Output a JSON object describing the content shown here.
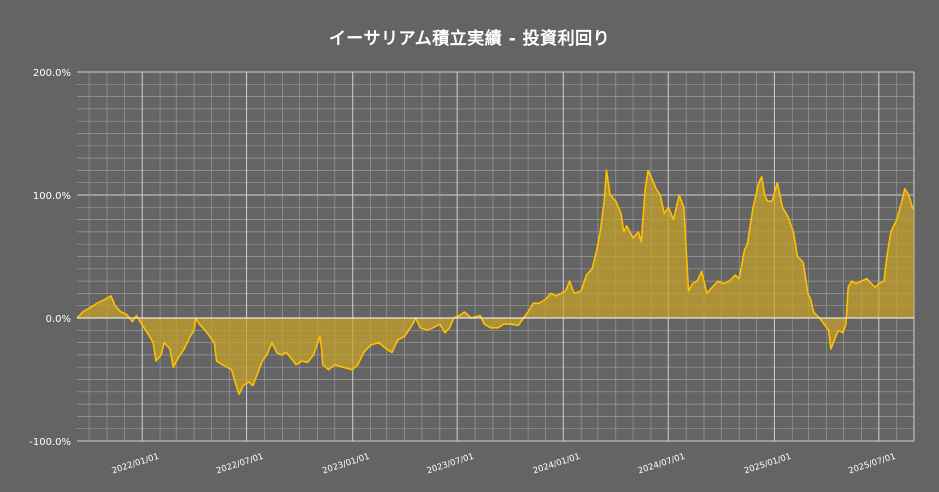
{
  "chart_data": {
    "type": "area",
    "title": "イーサリアム積立実績 - 投資利回り",
    "xlabel": "",
    "ylabel": "",
    "ylim": [
      -100,
      200
    ],
    "y_ticks": [
      -100,
      0,
      100,
      200
    ],
    "y_tick_labels": [
      "-100.0%",
      "0.0%",
      "100.0%",
      "200.0%"
    ],
    "x_range": [
      "2021-09-10",
      "2025-08-31"
    ],
    "x_tick_labels": [
      "2022/01/01",
      "2022/07/01",
      "2023/01/01",
      "2023/07/01",
      "2024/01/01",
      "2024/07/01",
      "2025/01/01",
      "2025/07/01"
    ],
    "x_tick_dates": [
      "2022-01-01",
      "2022-07-01",
      "2023-01-01",
      "2023-07-01",
      "2024-01-01",
      "2024-07-01",
      "2025-01-01",
      "2025-07-01"
    ],
    "grid": true,
    "legend": "none",
    "colors": {
      "background": "#646464",
      "grid": "#9a9a9a",
      "grid_major": "#d0d0d0",
      "line": "#ffc000",
      "fill": "#c9a227",
      "zero_line": "#ffffff"
    },
    "series": [
      {
        "values_unit": "%",
        "points": [
          [
            "2021-09-10",
            0
          ],
          [
            "2021-09-20",
            5
          ],
          [
            "2021-10-01",
            8
          ],
          [
            "2021-10-15",
            12
          ],
          [
            "2021-10-28",
            15
          ],
          [
            "2021-11-08",
            18
          ],
          [
            "2021-11-15",
            10
          ],
          [
            "2021-11-25",
            5
          ],
          [
            "2021-12-05",
            3
          ],
          [
            "2021-12-15",
            -3
          ],
          [
            "2021-12-22",
            2
          ],
          [
            "2021-12-31",
            -5
          ],
          [
            "2022-01-10",
            -12
          ],
          [
            "2022-01-20",
            -20
          ],
          [
            "2022-01-25",
            -35
          ],
          [
            "2022-02-03",
            -30
          ],
          [
            "2022-02-08",
            -20
          ],
          [
            "2022-02-18",
            -25
          ],
          [
            "2022-02-24",
            -40
          ],
          [
            "2022-03-05",
            -32
          ],
          [
            "2022-03-15",
            -25
          ],
          [
            "2022-03-25",
            -15
          ],
          [
            "2022-04-01",
            -10
          ],
          [
            "2022-04-04",
            0
          ],
          [
            "2022-04-10",
            -5
          ],
          [
            "2022-04-20",
            -10
          ],
          [
            "2022-04-28",
            -15
          ],
          [
            "2022-05-06",
            -20
          ],
          [
            "2022-05-10",
            -35
          ],
          [
            "2022-05-20",
            -38
          ],
          [
            "2022-05-28",
            -40
          ],
          [
            "2022-06-05",
            -42
          ],
          [
            "2022-06-13",
            -55
          ],
          [
            "2022-06-18",
            -62
          ],
          [
            "2022-06-25",
            -55
          ],
          [
            "2022-07-05",
            -52
          ],
          [
            "2022-07-12",
            -55
          ],
          [
            "2022-07-20",
            -45
          ],
          [
            "2022-07-28",
            -35
          ],
          [
            "2022-08-05",
            -30
          ],
          [
            "2022-08-14",
            -20
          ],
          [
            "2022-08-22",
            -28
          ],
          [
            "2022-08-30",
            -30
          ],
          [
            "2022-09-08",
            -28
          ],
          [
            "2022-09-15",
            -32
          ],
          [
            "2022-09-25",
            -38
          ],
          [
            "2022-10-05",
            -35
          ],
          [
            "2022-10-15",
            -36
          ],
          [
            "2022-10-25",
            -30
          ],
          [
            "2022-11-05",
            -15
          ],
          [
            "2022-11-08",
            -25
          ],
          [
            "2022-11-10",
            -38
          ],
          [
            "2022-11-20",
            -42
          ],
          [
            "2022-12-01",
            -38
          ],
          [
            "2022-12-15",
            -40
          ],
          [
            "2022-12-31",
            -42
          ],
          [
            "2023-01-10",
            -38
          ],
          [
            "2023-01-20",
            -28
          ],
          [
            "2023-02-01",
            -22
          ],
          [
            "2023-02-15",
            -20
          ],
          [
            "2023-02-28",
            -25
          ],
          [
            "2023-03-10",
            -28
          ],
          [
            "2023-03-20",
            -18
          ],
          [
            "2023-04-01",
            -15
          ],
          [
            "2023-04-15",
            -5
          ],
          [
            "2023-04-20",
            0
          ],
          [
            "2023-04-28",
            -8
          ],
          [
            "2023-05-10",
            -10
          ],
          [
            "2023-05-20",
            -8
          ],
          [
            "2023-06-01",
            -5
          ],
          [
            "2023-06-10",
            -12
          ],
          [
            "2023-06-18",
            -8
          ],
          [
            "2023-06-25",
            0
          ],
          [
            "2023-07-05",
            2
          ],
          [
            "2023-07-14",
            5
          ],
          [
            "2023-07-25",
            0
          ],
          [
            "2023-08-10",
            2
          ],
          [
            "2023-08-17",
            -5
          ],
          [
            "2023-08-28",
            -8
          ],
          [
            "2023-09-10",
            -8
          ],
          [
            "2023-09-20",
            -5
          ],
          [
            "2023-10-01",
            -5
          ],
          [
            "2023-10-15",
            -6
          ],
          [
            "2023-10-24",
            0
          ],
          [
            "2023-11-01",
            5
          ],
          [
            "2023-11-10",
            12
          ],
          [
            "2023-11-20",
            12
          ],
          [
            "2023-12-01",
            15
          ],
          [
            "2023-12-10",
            20
          ],
          [
            "2023-12-20",
            18
          ],
          [
            "2023-12-28",
            20
          ],
          [
            "2024-01-05",
            22
          ],
          [
            "2024-01-12",
            30
          ],
          [
            "2024-01-20",
            20
          ],
          [
            "2024-02-01",
            22
          ],
          [
            "2024-02-10",
            35
          ],
          [
            "2024-02-20",
            40
          ],
          [
            "2024-02-28",
            55
          ],
          [
            "2024-03-05",
            70
          ],
          [
            "2024-03-12",
            95
          ],
          [
            "2024-03-16",
            120
          ],
          [
            "2024-03-22",
            100
          ],
          [
            "2024-04-01",
            95
          ],
          [
            "2024-04-10",
            85
          ],
          [
            "2024-04-15",
            70
          ],
          [
            "2024-04-20",
            75
          ],
          [
            "2024-05-01",
            65
          ],
          [
            "2024-05-10",
            70
          ],
          [
            "2024-05-15",
            62
          ],
          [
            "2024-05-22",
            105
          ],
          [
            "2024-05-27",
            120
          ],
          [
            "2024-06-01",
            115
          ],
          [
            "2024-06-10",
            105
          ],
          [
            "2024-06-17",
            100
          ],
          [
            "2024-06-24",
            85
          ],
          [
            "2024-07-01",
            90
          ],
          [
            "2024-07-10",
            80
          ],
          [
            "2024-07-20",
            100
          ],
          [
            "2024-07-28",
            90
          ],
          [
            "2024-08-05",
            22
          ],
          [
            "2024-08-12",
            28
          ],
          [
            "2024-08-20",
            30
          ],
          [
            "2024-08-28",
            38
          ],
          [
            "2024-09-06",
            20
          ],
          [
            "2024-09-15",
            25
          ],
          [
            "2024-09-25",
            30
          ],
          [
            "2024-10-05",
            28
          ],
          [
            "2024-10-15",
            30
          ],
          [
            "2024-10-25",
            35
          ],
          [
            "2024-11-01",
            32
          ],
          [
            "2024-11-10",
            55
          ],
          [
            "2024-11-15",
            60
          ],
          [
            "2024-11-25",
            90
          ],
          [
            "2024-12-05",
            110
          ],
          [
            "2024-12-10",
            115
          ],
          [
            "2024-12-15",
            100
          ],
          [
            "2024-12-20",
            95
          ],
          [
            "2024-12-28",
            95
          ],
          [
            "2025-01-06",
            110
          ],
          [
            "2025-01-15",
            90
          ],
          [
            "2025-01-25",
            82
          ],
          [
            "2025-02-03",
            70
          ],
          [
            "2025-02-10",
            50
          ],
          [
            "2025-02-20",
            45
          ],
          [
            "2025-02-28",
            20
          ],
          [
            "2025-03-05",
            15
          ],
          [
            "2025-03-10",
            5
          ],
          [
            "2025-03-20",
            0
          ],
          [
            "2025-03-28",
            -5
          ],
          [
            "2025-04-05",
            -10
          ],
          [
            "2025-04-09",
            -25
          ],
          [
            "2025-04-15",
            -18
          ],
          [
            "2025-04-22",
            -10
          ],
          [
            "2025-04-30",
            -12
          ],
          [
            "2025-05-05",
            -5
          ],
          [
            "2025-05-09",
            25
          ],
          [
            "2025-05-15",
            30
          ],
          [
            "2025-05-22",
            28
          ],
          [
            "2025-06-01",
            30
          ],
          [
            "2025-06-10",
            32
          ],
          [
            "2025-06-18",
            28
          ],
          [
            "2025-06-25",
            25
          ],
          [
            "2025-07-01",
            28
          ],
          [
            "2025-07-10",
            30
          ],
          [
            "2025-07-15",
            50
          ],
          [
            "2025-07-22",
            70
          ],
          [
            "2025-08-01",
            80
          ],
          [
            "2025-08-10",
            95
          ],
          [
            "2025-08-15",
            105
          ],
          [
            "2025-08-22",
            100
          ],
          [
            "2025-08-28",
            90
          ],
          [
            "2025-08-31",
            88
          ]
        ]
      }
    ]
  }
}
